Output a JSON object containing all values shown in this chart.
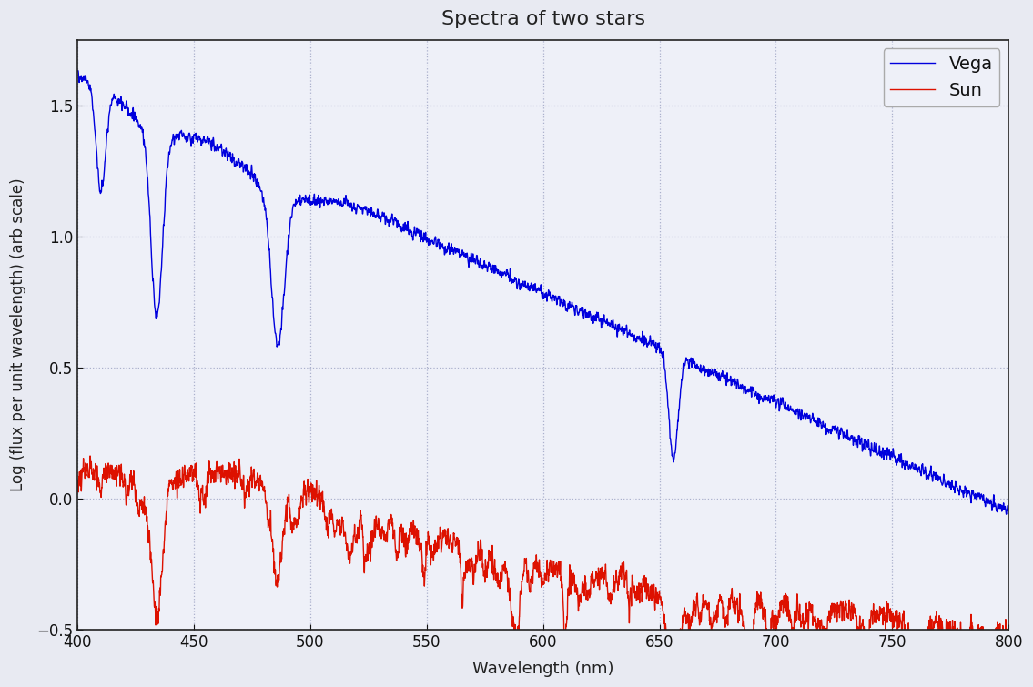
{
  "title": "Spectra of two stars",
  "xlabel": "Wavelength (nm)",
  "ylabel": "Log (flux per unit wavelength) (arb scale)",
  "xlim": [
    400,
    800
  ],
  "ylim": [
    -0.5,
    1.75
  ],
  "yticks": [
    -0.5,
    0.0,
    0.5,
    1.0,
    1.5
  ],
  "xticks": [
    400,
    450,
    500,
    550,
    600,
    650,
    700,
    750,
    800
  ],
  "background_color": "#e8eaf2",
  "plot_bg_color": "#eef0f8",
  "grid_color": "#aab0cc",
  "vega_color": "#0000dd",
  "sun_color": "#dd1100",
  "legend_entries": [
    "Vega",
    "Sun"
  ],
  "title_fontsize": 16,
  "label_fontsize": 13,
  "tick_fontsize": 12
}
